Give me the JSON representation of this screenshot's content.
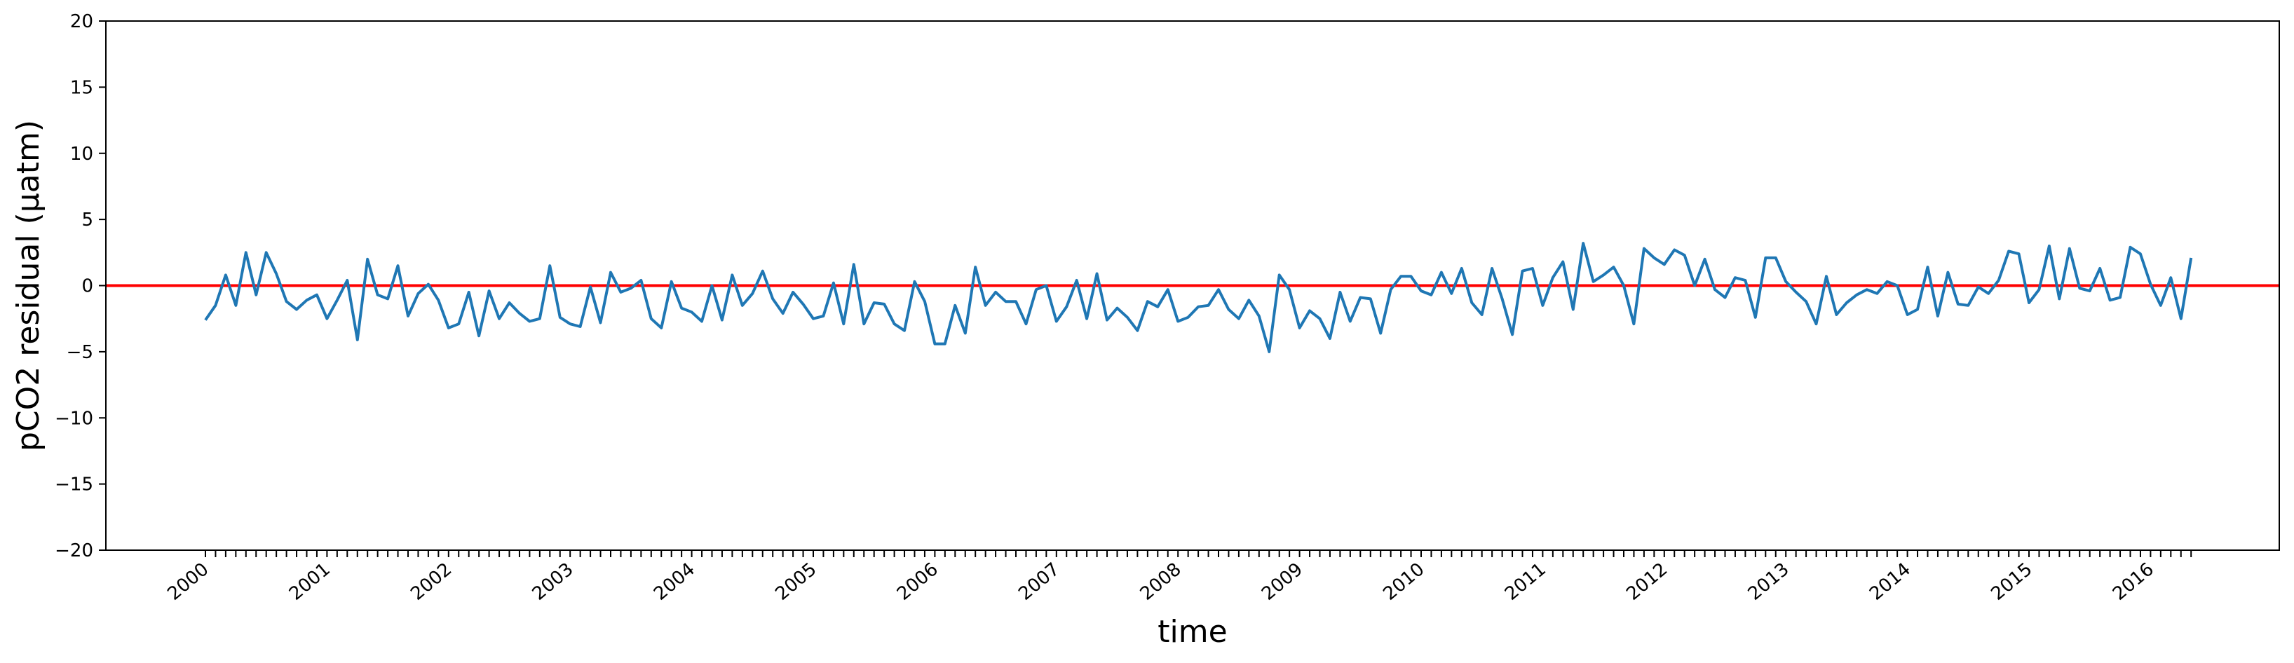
{
  "chart_data": {
    "type": "line",
    "title": "",
    "xlabel": "time",
    "ylabel": "pCO2 residual (µatm)",
    "ylim": [
      -20,
      20
    ],
    "yticks": [
      20,
      15,
      10,
      5,
      0,
      -5,
      -10,
      -15,
      -20
    ],
    "yticklabels": [
      "20",
      "15",
      "10",
      "5",
      "0",
      "−5",
      "−10",
      "−15",
      "−20"
    ],
    "xticklabels": [
      "2000",
      "2001",
      "2002",
      "2003",
      "2004",
      "2005",
      "2006",
      "2007",
      "2008",
      "2009",
      "2010",
      "2011",
      "2012",
      "2013",
      "2014",
      "2015",
      "2016"
    ],
    "x_start": "2000-01",
    "x_end": "2016-04",
    "reference_line": {
      "y": 0,
      "color": "#ff0000"
    },
    "line_color": "#1f77b4",
    "grid": false,
    "series": [
      {
        "values": [
          -2.6,
          -1.5,
          0.8,
          -1.5,
          2.5,
          -0.7,
          2.5,
          0.9,
          -1.2,
          -1.8,
          -1.1,
          -0.7,
          -2.5,
          -1.1,
          0.4,
          -4.1,
          2.0,
          -0.7,
          -1.0,
          1.5,
          -2.3,
          -0.6,
          0.1,
          -1.1,
          -3.2,
          -2.9,
          -0.5,
          -3.8,
          -0.4,
          -2.5,
          -1.3,
          -2.1,
          -2.7,
          -2.5,
          1.5,
          -2.4,
          -2.9,
          -3.1,
          -0.1,
          -2.8,
          1.0,
          -0.5,
          -0.2,
          0.4,
          -2.5,
          -3.2,
          0.3,
          -1.7,
          -2.0,
          -2.7,
          0.0,
          -2.6,
          0.8,
          -1.5,
          -0.6,
          1.1,
          -1.0,
          -2.1,
          -0.5,
          -1.4,
          -2.5,
          -2.3,
          0.2,
          -2.9,
          1.6,
          -2.9,
          -1.3,
          -1.4,
          -2.9,
          -3.4,
          0.3,
          -1.2,
          -4.4,
          -4.4,
          -1.5,
          -3.6,
          1.4,
          -1.5,
          -0.5,
          -1.2,
          -1.2,
          -2.9,
          -0.3,
          0.0,
          -2.7,
          -1.6,
          0.4,
          -2.5,
          0.9,
          -2.6,
          -1.7,
          -2.4,
          -3.4,
          -1.2,
          -1.6,
          -0.3,
          -2.7,
          -2.4,
          -1.6,
          -1.5,
          -0.3,
          -1.8,
          -2.5,
          -1.1,
          -2.3,
          -5.0,
          0.8,
          -0.3,
          -3.2,
          -1.9,
          -2.5,
          -4.0,
          -0.5,
          -2.7,
          -0.9,
          -1.0,
          -3.6,
          -0.3,
          0.7,
          0.7,
          -0.4,
          -0.7,
          1.0,
          -0.6,
          1.3,
          -1.3,
          -2.2,
          1.3,
          -1.0,
          -3.7,
          1.1,
          1.3,
          -1.5,
          0.6,
          1.8,
          -1.8,
          3.2,
          0.3,
          0.8,
          1.4,
          0.0,
          -2.9,
          2.8,
          2.1,
          1.6,
          2.7,
          2.3,
          0.0,
          2.0,
          -0.3,
          -0.9,
          0.6,
          0.4,
          -2.4,
          2.1,
          2.1,
          0.3,
          -0.5,
          -1.2,
          -2.9,
          0.7,
          -2.2,
          -1.3,
          -0.7,
          -0.3,
          -0.6,
          0.3,
          0.0,
          -2.2,
          -1.8,
          1.4,
          -2.3,
          1.0,
          -1.4,
          -1.5,
          -0.1,
          -0.6,
          0.4,
          2.6,
          2.4,
          -1.3,
          -0.3,
          3.0,
          -1.0,
          2.8,
          -0.2,
          -0.4,
          1.3,
          -1.1,
          -0.9,
          2.9,
          2.4,
          0.1,
          -1.5,
          0.6,
          -2.5,
          2.1
        ]
      }
    ]
  }
}
